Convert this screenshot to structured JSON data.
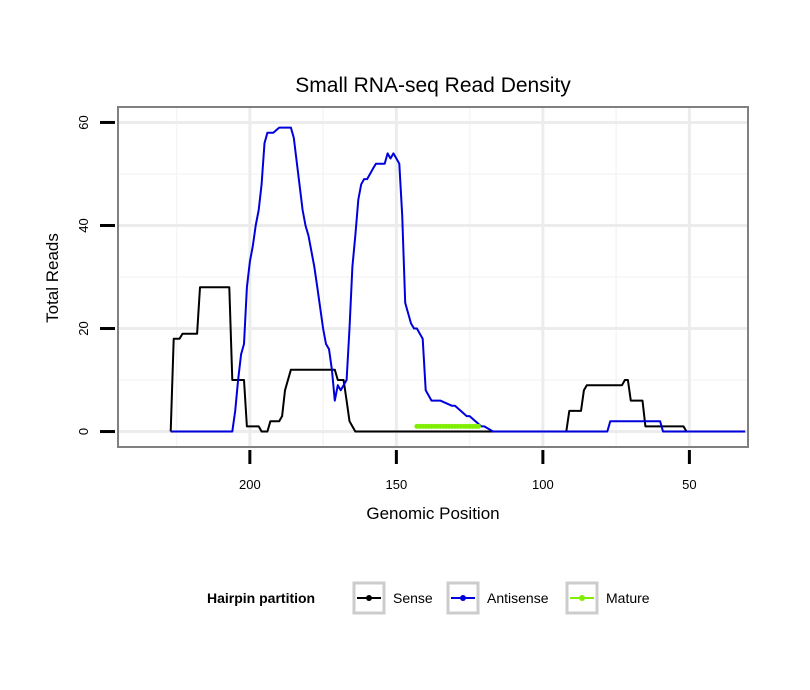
{
  "chart_data": {
    "type": "line",
    "title": "Small RNA-seq Read Density",
    "xlabel": "Genomic Position",
    "ylabel": "Total Reads",
    "xlim": [
      245,
      30
    ],
    "ylim": [
      -3,
      63
    ],
    "x_reversed": true,
    "x_ticks": [
      200,
      150,
      100,
      50
    ],
    "x_tick_labels": [
      "200",
      "150",
      "100",
      "50"
    ],
    "y_ticks": [
      0,
      20,
      40,
      60
    ],
    "y_tick_labels": [
      "0",
      "20",
      "40",
      "60"
    ],
    "grid": true,
    "legend": {
      "title": "Hairpin partition",
      "placement": "bottom",
      "entries": [
        "Sense",
        "Antisense",
        "Mature"
      ]
    },
    "series": [
      {
        "name": "Sense",
        "color": "#000000",
        "x": [
          227,
          226,
          224,
          223,
          222,
          218,
          217,
          207,
          206,
          202,
          201,
          197,
          196,
          194,
          193,
          190,
          189,
          188,
          186,
          185,
          183,
          171,
          170,
          168,
          167,
          166,
          165,
          164,
          143,
          123,
          92,
          91,
          87,
          86,
          85,
          84,
          83,
          73,
          72,
          71,
          70,
          66,
          65,
          52,
          51,
          31
        ],
        "y": [
          0,
          18,
          18,
          19,
          19,
          19,
          28,
          28,
          10,
          10,
          1,
          1,
          0,
          0,
          2,
          2,
          3,
          8,
          12,
          12,
          12,
          12,
          10,
          10,
          6,
          2,
          1,
          0,
          0,
          0,
          0,
          4,
          4,
          8,
          9,
          9,
          9,
          9,
          10,
          10,
          6,
          6,
          1,
          1,
          0,
          0
        ]
      },
      {
        "name": "Antisense",
        "color": "#0000dd",
        "x": [
          227,
          206,
          205,
          204,
          203,
          202,
          201,
          200,
          199,
          198,
          197,
          196,
          195,
          194,
          193,
          192,
          190,
          186,
          185,
          182,
          181,
          180,
          179,
          178,
          177,
          176,
          175,
          174,
          173,
          172,
          171,
          170,
          169,
          168,
          167,
          166,
          165,
          164,
          163,
          162,
          161,
          160,
          159,
          158,
          157,
          156,
          155,
          154,
          153,
          152,
          151,
          150,
          149,
          148,
          147,
          146,
          145,
          144,
          143,
          142,
          141,
          140,
          138,
          137,
          136,
          135,
          131,
          130,
          126,
          125,
          121,
          120,
          117,
          116,
          115,
          114,
          93,
          92,
          89,
          88,
          80,
          79,
          78,
          77,
          76,
          60,
          59,
          31
        ],
        "y": [
          0,
          0,
          4,
          10,
          15,
          17,
          28,
          33,
          36,
          40,
          43,
          48,
          56,
          58,
          58,
          58,
          59,
          59,
          57,
          43,
          40,
          38,
          35,
          32,
          28,
          24,
          20,
          17,
          16,
          12,
          6,
          9,
          8,
          9,
          10,
          20,
          32,
          38,
          45,
          48,
          49,
          49,
          50,
          51,
          52,
          52,
          52,
          52,
          54,
          53,
          54,
          53,
          52,
          42,
          25,
          23,
          21,
          20,
          20,
          19,
          18,
          8,
          6,
          6,
          6,
          6,
          5,
          5,
          3,
          3,
          1,
          1,
          0,
          0,
          0,
          0,
          0,
          0,
          0,
          0,
          0,
          0,
          0,
          2,
          2,
          2,
          0,
          0
        ]
      },
      {
        "name": "Mature",
        "color": "#80ee00",
        "x": [
          143,
          142,
          141,
          140,
          139,
          138,
          137,
          136,
          135,
          134,
          133,
          132,
          131,
          130,
          129,
          128,
          127,
          126,
          125,
          124,
          123,
          122
        ],
        "y": [
          1,
          1,
          1,
          1,
          1,
          1,
          1,
          1,
          1,
          1,
          1,
          1,
          1,
          1,
          1,
          1,
          1,
          1,
          1,
          1,
          1,
          1
        ]
      }
    ]
  }
}
